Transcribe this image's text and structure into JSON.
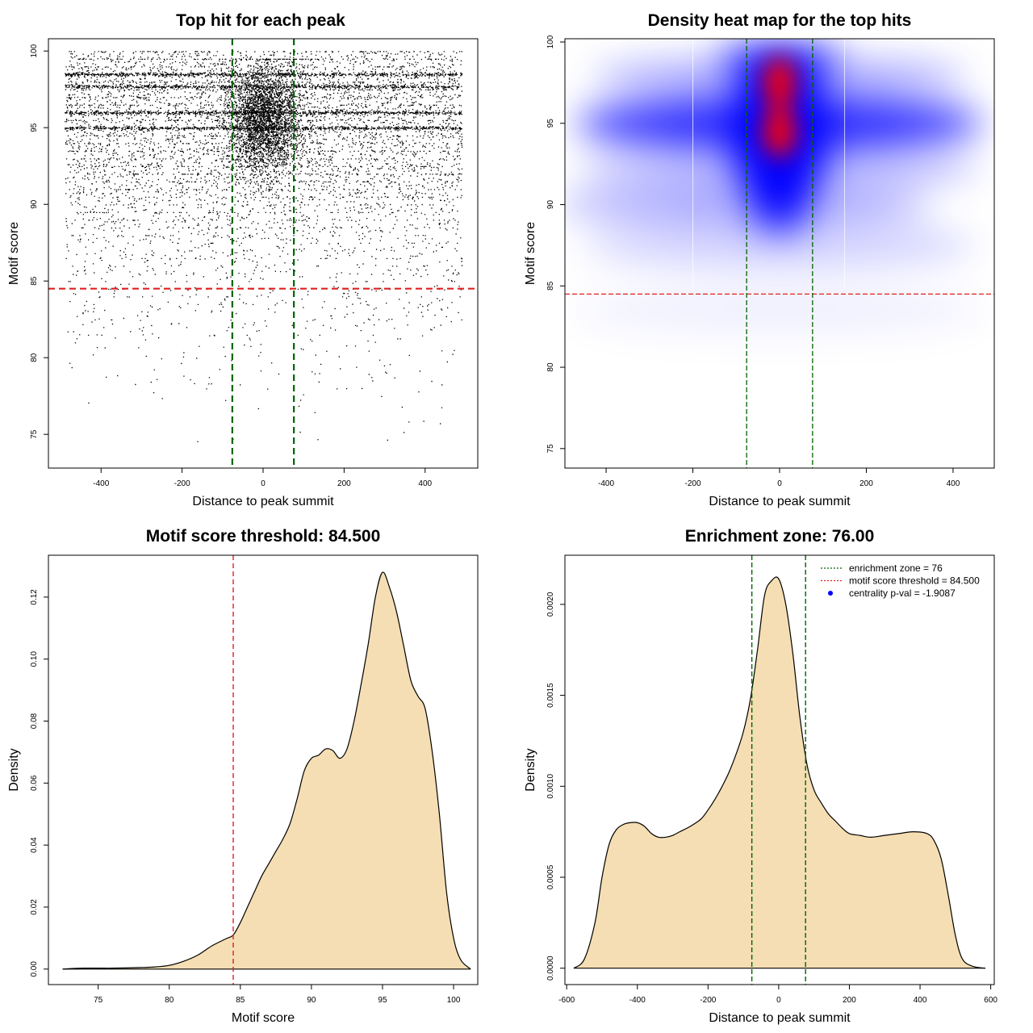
{
  "chart_data": [
    {
      "type": "scatter",
      "title": "Top hit for each peak",
      "xlabel": "Distance to peak summit",
      "ylabel": "Motif score",
      "xlim": [
        -530,
        530
      ],
      "ylim": [
        72.8,
        100.8
      ],
      "xticks": [
        -400,
        -200,
        0,
        200,
        400
      ],
      "yticks": [
        75,
        80,
        85,
        90,
        95,
        100
      ],
      "hlines": [
        {
          "y": 84.5,
          "color": "#e02020"
        }
      ],
      "vlines": [
        {
          "x": -76,
          "color": "#006400"
        },
        {
          "x": 76,
          "color": "#006400"
        }
      ],
      "point_color": "#000000",
      "grid": false,
      "points_summary": "dense scatter over x in [-490, 490], y mostly 85-100; dense central band near x=0, y 93-98; horizontal bands at y=95, 96, 97.7, 98.5"
    },
    {
      "type": "heatmap",
      "title": "Density heat map for the top hits",
      "xlabel": "Distance to peak summit",
      "ylabel": "Motif score",
      "xlim": [
        -495,
        495
      ],
      "ylim": [
        73.8,
        100.2
      ],
      "xticks": [
        -400,
        -200,
        0,
        200,
        400
      ],
      "yticks": [
        75,
        80,
        85,
        90,
        95,
        100
      ],
      "hlines": [
        {
          "y": 84.5,
          "color": "#e02020"
        }
      ],
      "vlines": [
        {
          "x": -76,
          "color": "#006400"
        },
        {
          "x": 76,
          "color": "#006400"
        }
      ],
      "colors": {
        "low": "#ffffff",
        "mid": "#0000ff",
        "high": "#ff0000"
      },
      "hotspots": [
        {
          "x": 0,
          "y": 94.5,
          "level": "high"
        },
        {
          "x": 0,
          "y": 97.5,
          "level": "high"
        },
        {
          "x": 0,
          "y": 95,
          "level": "mid",
          "spread": "horizontal band across full x range"
        }
      ]
    },
    {
      "type": "area",
      "title": "Motif score threshold: 84.500",
      "xlabel": "Motif score",
      "ylabel": "Density",
      "xlim": [
        71.5,
        101.7
      ],
      "ylim": [
        -0.005,
        0.1335
      ],
      "xticks": [
        75,
        80,
        85,
        90,
        95,
        100
      ],
      "yticks": [
        0.0,
        0.02,
        0.04,
        0.06,
        0.08,
        0.1,
        0.12
      ],
      "ytick_labels": [
        "0.00",
        "0.02",
        "0.04",
        "0.06",
        "0.08",
        "0.10",
        "0.12"
      ],
      "fill_color": "#f5deb3",
      "vlines": [
        {
          "x": 84.5,
          "color": "#e02020"
        }
      ],
      "x": [
        72.5,
        74,
        76,
        78,
        79,
        80,
        81,
        82,
        83,
        84,
        84.5,
        85,
        85.5,
        86,
        86.5,
        87,
        87.5,
        88,
        88.5,
        89,
        89.5,
        90,
        90.5,
        91,
        91.5,
        92,
        92.5,
        93,
        93.5,
        94,
        94.5,
        95,
        95.5,
        96,
        96.5,
        97,
        97.5,
        98,
        98.5,
        99,
        99.5,
        100,
        100.5,
        101.2
      ],
      "y": [
        0.0,
        0.0003,
        0.0003,
        0.0005,
        0.0007,
        0.0012,
        0.0025,
        0.0045,
        0.0075,
        0.0098,
        0.011,
        0.015,
        0.02,
        0.025,
        0.03,
        0.034,
        0.038,
        0.042,
        0.047,
        0.055,
        0.064,
        0.068,
        0.069,
        0.071,
        0.0705,
        0.068,
        0.071,
        0.08,
        0.092,
        0.105,
        0.12,
        0.128,
        0.123,
        0.115,
        0.104,
        0.093,
        0.088,
        0.084,
        0.07,
        0.05,
        0.025,
        0.01,
        0.003,
        0.0
      ]
    },
    {
      "type": "area",
      "title": "Enrichment zone: 76.00",
      "xlabel": "Distance to peak summit",
      "ylabel": "Density",
      "xlim": [
        -605,
        610
      ],
      "ylim": [
        -9e-05,
        0.00227
      ],
      "xticks": [
        -600,
        -400,
        -200,
        0,
        200,
        400,
        600
      ],
      "yticks": [
        0.0,
        0.0005,
        0.001,
        0.0015,
        0.002
      ],
      "ytick_labels": [
        "0.0000",
        "0.0005",
        "0.0010",
        "0.0015",
        "0.0020"
      ],
      "fill_color": "#f5deb3",
      "vlines": [
        {
          "x": -76,
          "color": "#006400"
        },
        {
          "x": 76,
          "color": "#006400"
        }
      ],
      "legend_position": "top-right",
      "legend": [
        {
          "label": "enrichment zone = 76",
          "color": "#006400",
          "style": "dotted-line"
        },
        {
          "label": "motif score threshold = 84.500",
          "color": "#e02020",
          "style": "dotted-line"
        },
        {
          "label": "centrality p-val = -1.9087",
          "color": "#0000ff",
          "style": "point"
        }
      ],
      "x": [
        -580,
        -550,
        -520,
        -500,
        -480,
        -460,
        -440,
        -420,
        -400,
        -380,
        -360,
        -340,
        -320,
        -300,
        -280,
        -250,
        -220,
        -200,
        -180,
        -160,
        -140,
        -120,
        -100,
        -80,
        -60,
        -40,
        -20,
        0,
        20,
        40,
        60,
        80,
        100,
        120,
        140,
        160,
        180,
        200,
        230,
        260,
        300,
        340,
        380,
        420,
        440,
        460,
        480,
        500,
        520,
        550,
        585
      ],
      "y": [
        0.0,
        5e-05,
        0.00025,
        0.0005,
        0.00068,
        0.00076,
        0.00079,
        0.0008,
        0.0008,
        0.00078,
        0.00074,
        0.00072,
        0.00072,
        0.00073,
        0.00075,
        0.00078,
        0.00082,
        0.00087,
        0.00093,
        0.001,
        0.00108,
        0.00118,
        0.0013,
        0.00148,
        0.00175,
        0.00205,
        0.00213,
        0.00214,
        0.002,
        0.00173,
        0.00138,
        0.00112,
        0.00098,
        0.00091,
        0.00085,
        0.00081,
        0.00077,
        0.00074,
        0.00073,
        0.00072,
        0.00073,
        0.00074,
        0.00075,
        0.00074,
        0.0007,
        0.0006,
        0.0004,
        0.00018,
        5e-05,
        1e-05,
        0.0
      ]
    }
  ]
}
